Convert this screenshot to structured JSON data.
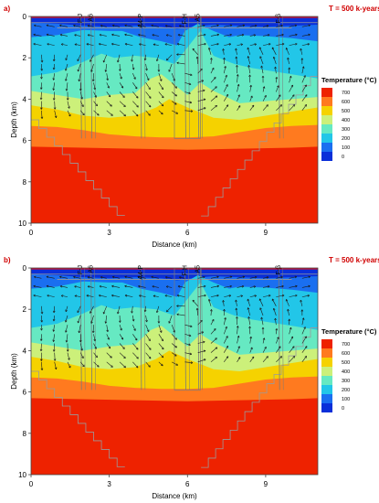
{
  "panels": [
    {
      "label": "a)",
      "time_label": "T = 500 k-years",
      "faults": [
        {
          "name": "F-J",
          "x": 1.9
        },
        {
          "name": "A6",
          "x": 2.3
        },
        {
          "name": "A4-P",
          "x": 4.2
        },
        {
          "name": "F-H",
          "x": 5.9
        },
        {
          "name": "A5",
          "x": 6.4
        },
        {
          "name": "F-β",
          "x": 9.5
        }
      ]
    },
    {
      "label": "b)",
      "time_label": "T = 500 k-years",
      "faults": [
        {
          "name": "F-J",
          "x": 1.9
        },
        {
          "name": "A6",
          "x": 2.3
        },
        {
          "name": "A4-P",
          "x": 4.2
        },
        {
          "name": "F-H",
          "x": 5.9
        },
        {
          "name": "A5",
          "x": 6.4
        },
        {
          "name": "F-β",
          "x": 9.5
        }
      ]
    }
  ],
  "chart_data": [
    {
      "type": "heatmap",
      "title": "",
      "xlabel": "Distance (km)",
      "ylabel": "Depth (km)",
      "xlim": [
        0,
        11
      ],
      "ylim": [
        10,
        0
      ],
      "x_ticks": [
        0,
        3,
        6,
        9
      ],
      "y_ticks": [
        0,
        2,
        4,
        6,
        8,
        10
      ],
      "legend": {
        "title": "Temperature (°C)",
        "placement": "right",
        "levels": [
          700,
          600,
          500,
          400,
          300,
          200,
          100,
          0
        ],
        "colors": [
          "#ee2200",
          "#ff7a1f",
          "#f5d200",
          "#ccf07a",
          "#66e9c2",
          "#22c6e8",
          "#1a6ff0",
          "#0a2fd9"
        ]
      },
      "color_bands": [
        {
          "value": 0,
          "color": "#0a2fd9"
        },
        {
          "value": 100,
          "color": "#1a6ff0"
        },
        {
          "value": 200,
          "color": "#22c6e8"
        },
        {
          "value": 300,
          "color": "#66e9c2"
        },
        {
          "value": 400,
          "color": "#ccf07a"
        },
        {
          "value": 500,
          "color": "#f5d200"
        },
        {
          "value": 600,
          "color": "#ff7a1f"
        },
        {
          "value": 700,
          "color": "#ee2200"
        }
      ]
    },
    {
      "type": "heatmap",
      "title": "",
      "xlabel": "Distance (km)",
      "ylabel": "Depth (km)",
      "xlim": [
        0,
        11
      ],
      "ylim": [
        10,
        0
      ],
      "x_ticks": [
        0,
        3,
        6,
        9
      ],
      "y_ticks": [
        0,
        2,
        4,
        6,
        8,
        10
      ],
      "legend": {
        "title": "Temperature (°C)",
        "placement": "right",
        "levels": [
          700,
          600,
          500,
          400,
          300,
          200,
          100,
          0
        ],
        "colors": [
          "#ee2200",
          "#ff7a1f",
          "#f5d200",
          "#ccf07a",
          "#66e9c2",
          "#22c6e8",
          "#1a6ff0",
          "#0a2fd9"
        ]
      }
    }
  ]
}
